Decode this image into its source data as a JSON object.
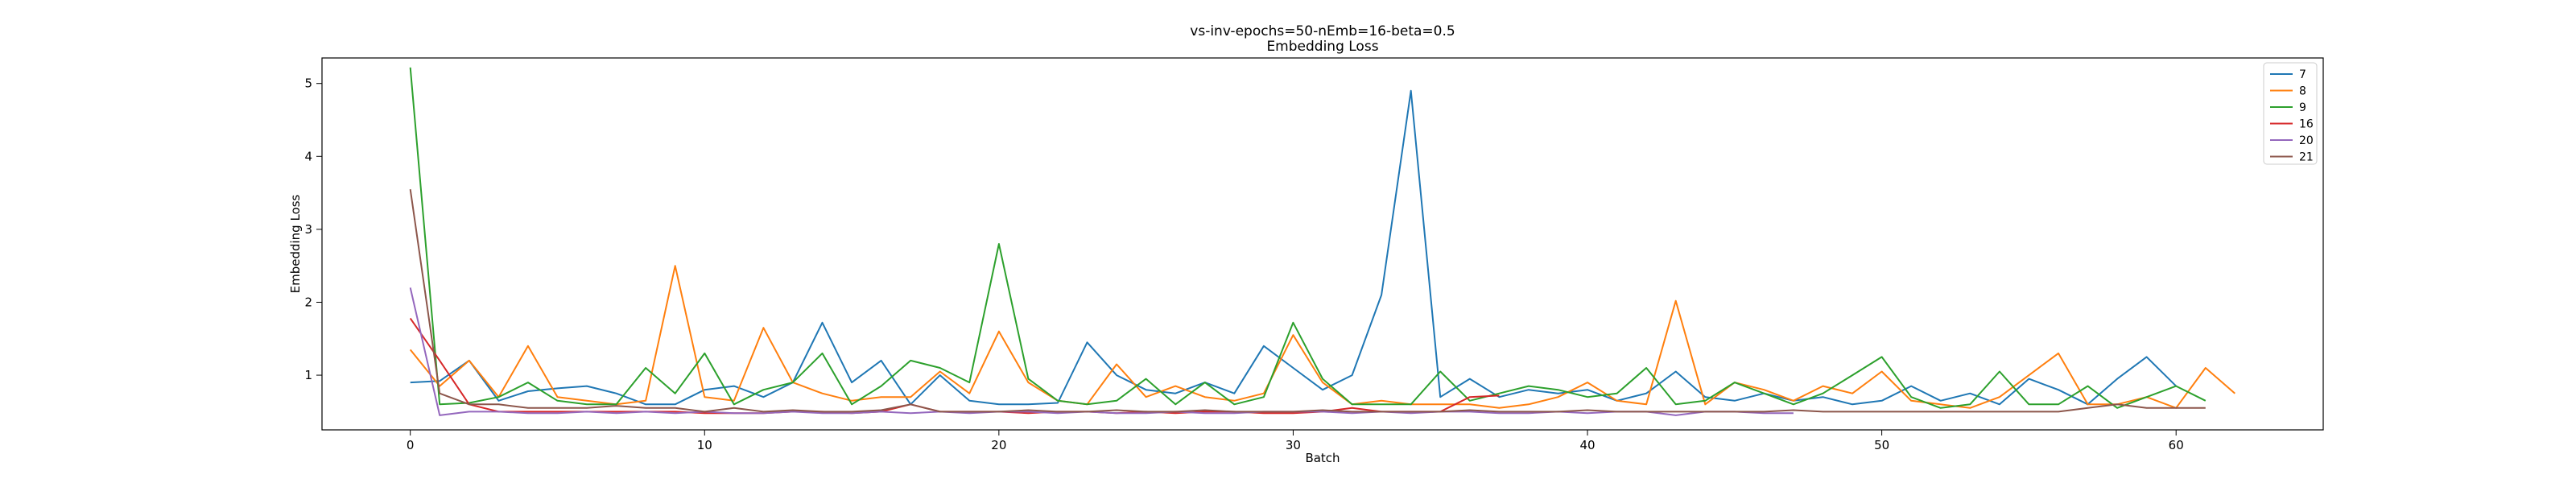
{
  "chart_data": {
    "type": "line",
    "title": "vs-inv-epochs=50-nEmb=16-beta=0.5",
    "subtitle": "Embedding Loss",
    "xlabel": "Batch",
    "ylabel": "Embedding Loss",
    "xlim": [
      -3,
      65
    ],
    "ylim": [
      0.25,
      5.35
    ],
    "xticks": [
      0,
      10,
      20,
      30,
      40,
      50,
      60
    ],
    "yticks": [
      1,
      2,
      3,
      4,
      5
    ],
    "grid": false,
    "legend_position": "top-right",
    "series": [
      {
        "name": "7",
        "color": "#1f77b4",
        "values": [
          0.9,
          0.92,
          1.2,
          0.65,
          0.78,
          0.82,
          0.85,
          0.75,
          0.6,
          0.6,
          0.8,
          0.85,
          0.7,
          0.9,
          1.72,
          0.9,
          1.2,
          0.6,
          1.0,
          0.65,
          0.6,
          0.6,
          0.62,
          1.45,
          1.0,
          0.8,
          0.75,
          0.9,
          0.75,
          1.4,
          1.1,
          0.8,
          1.0,
          2.1,
          4.9,
          0.7,
          0.95,
          0.7,
          0.8,
          0.75,
          0.8,
          0.65,
          0.75,
          1.05,
          0.7,
          0.65,
          0.75,
          0.65,
          0.7,
          0.6,
          0.65,
          0.85,
          0.65,
          0.75,
          0.6,
          0.95,
          0.8,
          0.6,
          0.95,
          1.25,
          0.85
        ]
      },
      {
        "name": "8",
        "color": "#ff7f0e",
        "values": [
          1.35,
          0.85,
          1.2,
          0.7,
          1.4,
          0.7,
          0.65,
          0.6,
          0.65,
          2.5,
          0.7,
          0.65,
          1.65,
          0.9,
          0.75,
          0.65,
          0.7,
          0.7,
          1.05,
          0.75,
          1.6,
          0.9,
          0.65,
          0.6,
          1.15,
          0.7,
          0.85,
          0.7,
          0.65,
          0.75,
          1.55,
          0.9,
          0.6,
          0.65,
          0.6,
          0.6,
          0.6,
          0.55,
          0.6,
          0.7,
          0.9,
          0.65,
          0.6,
          2.02,
          0.6,
          0.9,
          0.8,
          0.65,
          0.85,
          0.75,
          1.05,
          0.65,
          0.6,
          0.55,
          0.7,
          1.0,
          1.3,
          0.6,
          0.6,
          0.7,
          0.55,
          1.1,
          0.75
        ]
      },
      {
        "name": "9",
        "color": "#2ca02c",
        "values": [
          5.22,
          0.6,
          0.62,
          0.7,
          0.9,
          0.65,
          0.6,
          0.6,
          1.1,
          0.75,
          1.3,
          0.6,
          0.8,
          0.9,
          1.3,
          0.6,
          0.85,
          1.2,
          1.1,
          0.9,
          2.8,
          0.95,
          0.65,
          0.6,
          0.65,
          0.95,
          0.6,
          0.9,
          0.6,
          0.7,
          1.72,
          0.95,
          0.6,
          0.6,
          0.6,
          1.05,
          0.65,
          0.75,
          0.85,
          0.8,
          0.7,
          0.75,
          1.1,
          0.6,
          0.65,
          0.9,
          0.75,
          0.6,
          0.75,
          1.0,
          1.25,
          0.7,
          0.55,
          0.6,
          1.05,
          0.6,
          0.6,
          0.85,
          0.55,
          0.7,
          0.85,
          0.65
        ]
      },
      {
        "name": "16",
        "color": "#d62728",
        "values": [
          1.78,
          1.2,
          0.6,
          0.5,
          0.5,
          0.5,
          0.5,
          0.5,
          0.5,
          0.5,
          0.48,
          0.48,
          0.48,
          0.5,
          0.5,
          0.48,
          0.5,
          0.6,
          0.5,
          0.5,
          0.5,
          0.48,
          0.5,
          0.5,
          0.48,
          0.5,
          0.48,
          0.5,
          0.5,
          0.48,
          0.48,
          0.5,
          0.55,
          0.5,
          0.5,
          0.5,
          0.7,
          0.72
        ]
      },
      {
        "name": "20",
        "color": "#9467bd",
        "values": [
          2.2,
          0.45,
          0.5,
          0.5,
          0.48,
          0.48,
          0.5,
          0.48,
          0.5,
          0.48,
          0.5,
          0.48,
          0.48,
          0.5,
          0.48,
          0.48,
          0.5,
          0.48,
          0.5,
          0.48,
          0.5,
          0.5,
          0.48,
          0.5,
          0.48,
          0.48,
          0.5,
          0.48,
          0.48,
          0.5,
          0.5,
          0.5,
          0.48,
          0.5,
          0.48,
          0.5,
          0.5,
          0.48,
          0.48,
          0.5,
          0.48,
          0.5,
          0.5,
          0.45,
          0.5,
          0.5,
          0.48,
          0.48
        ]
      },
      {
        "name": "21",
        "color": "#8c564b",
        "values": [
          3.55,
          0.75,
          0.6,
          0.6,
          0.55,
          0.55,
          0.55,
          0.58,
          0.55,
          0.55,
          0.5,
          0.55,
          0.5,
          0.52,
          0.5,
          0.5,
          0.52,
          0.6,
          0.5,
          0.5,
          0.5,
          0.52,
          0.5,
          0.5,
          0.52,
          0.5,
          0.5,
          0.52,
          0.5,
          0.5,
          0.5,
          0.52,
          0.5,
          0.5,
          0.5,
          0.5,
          0.52,
          0.5,
          0.5,
          0.5,
          0.52,
          0.5,
          0.5,
          0.5,
          0.5,
          0.5,
          0.5,
          0.52,
          0.5,
          0.5,
          0.5,
          0.5,
          0.5,
          0.5,
          0.5,
          0.5,
          0.5,
          0.55,
          0.6,
          0.55,
          0.55,
          0.55
        ]
      }
    ]
  }
}
